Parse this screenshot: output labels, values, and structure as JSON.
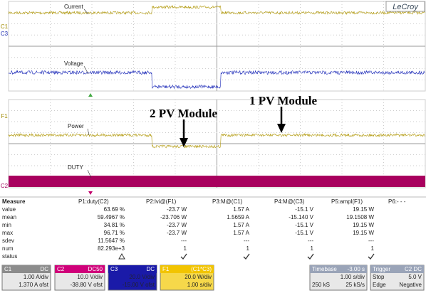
{
  "screen": {
    "brand": "LeCroy",
    "trace_labels": [
      "Current",
      "Voltage",
      "Power",
      "DUTY"
    ],
    "channel_markers": [
      "C1",
      "C3",
      "F1",
      "C2"
    ],
    "annotations": [
      "2 PV Module",
      "1 PV Module"
    ]
  },
  "measure_table": {
    "header": [
      "Measure",
      "P1:duty(C2)",
      "P2:lvi@(F1)",
      "P3:M@(C1)",
      "P4:M@(C3)",
      "P5:ampl(F1)",
      "P6:- - -"
    ],
    "rows": [
      [
        "value",
        "63.69 %",
        "-23.7 W",
        "1.57 A",
        "-15.1 V",
        "19.15 W"
      ],
      [
        "mean",
        "59.4967 %",
        "-23.706 W",
        "1.5659 A",
        "-15.140 V",
        "19.1508 W"
      ],
      [
        "min",
        "34.81 %",
        "-23.7 W",
        "1.57 A",
        "-15.1 V",
        "19.15 W"
      ],
      [
        "max",
        "96.71 %",
        "-23.7 W",
        "1.57 A",
        "-15.1 V",
        "19.15 W"
      ],
      [
        "sdev",
        "11.5647 %",
        "---",
        "---",
        "---",
        "---"
      ],
      [
        "num",
        "82.293e+3",
        "1",
        "1",
        "1",
        "1"
      ],
      [
        "status"
      ]
    ]
  },
  "channels": [
    {
      "name": "C1",
      "coupling": "DC",
      "scale": "1.00 A/div",
      "offset": "1.370 A ofst"
    },
    {
      "name": "C2",
      "coupling": "DC50",
      "scale": "10.0 V/div",
      "offset": "-38.80 V ofst"
    },
    {
      "name": "C3",
      "coupling": "DC",
      "scale": "20.0 V/div",
      "offset": "-15.00 V ofst"
    },
    {
      "name": "F1",
      "coupling": "(C1*C3)",
      "scale": "20.0 W/div",
      "offset": "1.00 s/div"
    }
  ],
  "timebase": {
    "title": "Timebase",
    "delay": "-3.00 s",
    "div": "1.00 s/div",
    "samples": "250 kS",
    "rate": "25 kS/s"
  },
  "trigger": {
    "title": "Trigger",
    "source": "C2 DC",
    "mode": "Stop",
    "level": "5.0 V",
    "type": "Edge",
    "slope": "Negative"
  }
}
